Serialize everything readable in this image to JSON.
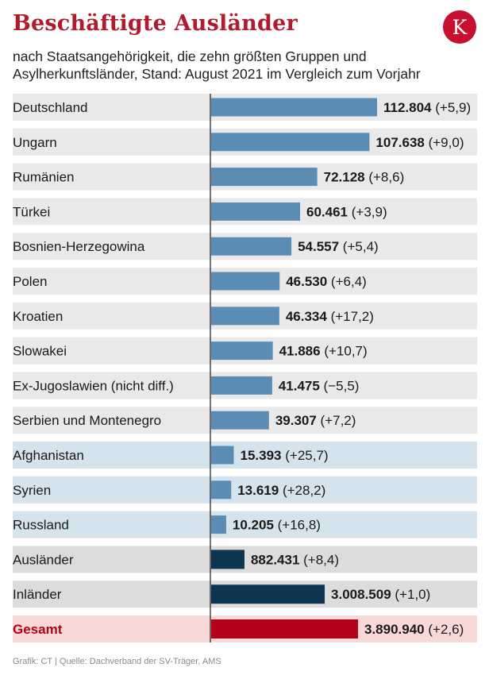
{
  "title": "Beschäftigte Ausländer",
  "logo_letter": "K",
  "subtitle": "nach Staatsangehörigkeit, die zehn größten Gruppen und Asylherkunftsländer, Stand: August 2021 im Vergleich zum Vorjahr",
  "source": "Grafik: CT | Quelle: Dachverband der SV-Träger, AMS",
  "colors": {
    "title": "#b01c2e",
    "logo": "#c8102e",
    "bar_main": "#5b8db4",
    "bar_total_group": "#0e3550",
    "bar_gesamt": "#b3001b",
    "row_main": "#e9e9e9",
    "row_asyl": "#d4e3ec",
    "row_total_group": "#dcdcdc",
    "row_gesamt": "#f8d9d7"
  },
  "chart_data": {
    "type": "bar",
    "orientation": "horizontal",
    "title": "Beschäftigte Ausländer",
    "categories": [
      "Deutschland",
      "Ungarn",
      "Rumänien",
      "Türkei",
      "Bosnien-Herzegowina",
      "Polen",
      "Kroatien",
      "Slowakei",
      "Ex-Jugoslawien (nicht diff.)",
      "Serbien und Montenegro",
      "Afghanistan",
      "Syrien",
      "Russland",
      "Ausländer",
      "Inländer",
      "Gesamt"
    ],
    "groups": [
      "main",
      "main",
      "main",
      "main",
      "main",
      "main",
      "main",
      "main",
      "main",
      "main",
      "asyl",
      "asyl",
      "asyl",
      "total",
      "total",
      "gesamt"
    ],
    "values": [
      112804,
      107638,
      72128,
      60461,
      54557,
      46530,
      46334,
      41886,
      41475,
      39307,
      15393,
      13619,
      10205,
      882431,
      3008509,
      3890940
    ],
    "value_labels": [
      "112.804",
      "107.638",
      "72.128",
      "60.461",
      "54.557",
      "46.530",
      "46.334",
      "41.886",
      "41.475",
      "39.307",
      "15.393",
      "13.619",
      "10.205",
      "882.431",
      "3.008.509",
      "3.890.940"
    ],
    "change_labels": [
      "(+5,9)",
      "(+9,0)",
      "(+8,6)",
      "(+3,9)",
      "(+5,4)",
      "(+6,4)",
      "(+17,2)",
      "(+10,7)",
      "(−5,5)",
      "(+7,2)",
      "(+25,7)",
      "(+28,2)",
      "(+16,8)",
      "(+8,4)",
      "(+1,0)",
      "(+2,6)"
    ],
    "scales": {
      "main": [
        0,
        112804
      ],
      "asyl": [
        0,
        112804
      ],
      "total": [
        0,
        3890940
      ],
      "gesamt": [
        0,
        3890940
      ]
    },
    "xlabel": "",
    "ylabel": ""
  }
}
